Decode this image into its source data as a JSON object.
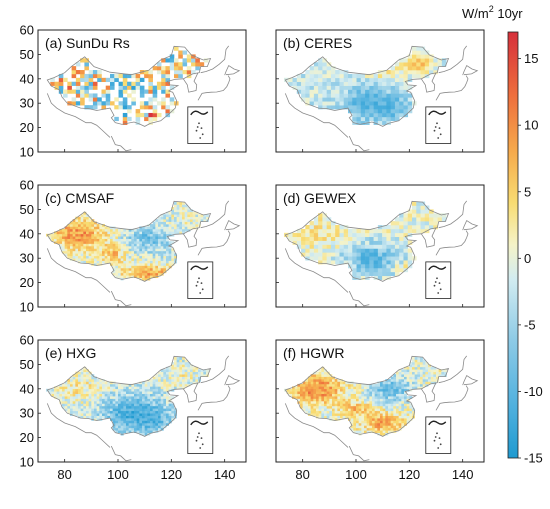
{
  "colorbar": {
    "unit_main": "W/m",
    "unit_sup": "2",
    "unit_tail": " 10yr",
    "min": -15,
    "max": 17,
    "ticks": [
      "15",
      "10",
      "5",
      "0",
      "-5",
      "-10",
      "-15"
    ],
    "tick_values": [
      15,
      10,
      5,
      0,
      -5,
      -10,
      -15
    ],
    "colors": [
      "#2b9fd0",
      "#5ab2dc",
      "#8fcbe6",
      "#c6e6f1",
      "#f3f1c4",
      "#f7d36b",
      "#f6a24a",
      "#ec6a3b",
      "#d8323a"
    ]
  },
  "axes": {
    "x_ticks": [
      "80",
      "100",
      "120",
      "140"
    ],
    "x_values": [
      80,
      100,
      120,
      140
    ],
    "y_ticks": [
      "10",
      "20",
      "30",
      "40",
      "50",
      "60"
    ],
    "y_values": [
      10,
      20,
      30,
      40,
      50,
      60
    ],
    "x_range": [
      70,
      148
    ],
    "y_range": [
      10,
      60
    ]
  },
  "panels": [
    {
      "label": "(a) SunDu Rs",
      "style": "sparse",
      "bias": 0.6
    },
    {
      "label": "(b) CERES",
      "style": "coarse",
      "bias": -0.3
    },
    {
      "label": "(c) CMSAF",
      "style": "fine",
      "bias": 0.5
    },
    {
      "label": "(d) GEWEX",
      "style": "coarse",
      "bias": -0.2
    },
    {
      "label": "(e) HXG",
      "style": "fine",
      "bias": -0.5
    },
    {
      "label": "(f) HGWR",
      "style": "fine",
      "bias": 0.7
    }
  ]
}
